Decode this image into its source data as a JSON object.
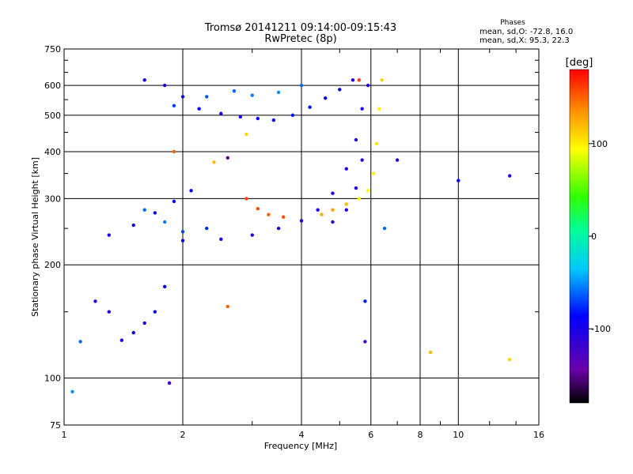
{
  "chart_data": {
    "type": "scatter",
    "title": "Tromsø 20141211 09:14:00-09:15:43",
    "subtitle": "RwPretec (8p)",
    "xlabel": "Frequency [MHz]",
    "ylabel": "Stationary phase Virtual Height [km]",
    "x_scale": "log",
    "y_scale": "log",
    "xlim": [
      1,
      16
    ],
    "ylim": [
      75,
      750
    ],
    "x_ticks": [
      1,
      2,
      4,
      6,
      8,
      10,
      16
    ],
    "y_ticks": [
      75,
      100,
      200,
      300,
      400,
      500,
      600,
      750
    ],
    "grid": true,
    "stats": {
      "header": "Phases",
      "line1": "mean, sd,O: -72.8, 16.0",
      "line2": "mean, sd,X:  95.3, 22.3"
    },
    "colorbar": {
      "label": "[deg]",
      "range": [
        -180,
        180
      ],
      "ticks": [
        100,
        0,
        -100
      ]
    },
    "series": [
      {
        "points": [
          [
            1.6,
            620,
            -95
          ],
          [
            1.8,
            600,
            -100
          ],
          [
            2.0,
            560,
            -95
          ],
          [
            2.2,
            520,
            -90
          ],
          [
            2.5,
            505,
            -100
          ],
          [
            2.8,
            495,
            -95
          ],
          [
            3.1,
            490,
            -90
          ],
          [
            3.4,
            485,
            -85
          ],
          [
            3.8,
            500,
            -80
          ],
          [
            4.2,
            525,
            -85
          ],
          [
            4.6,
            555,
            -90
          ],
          [
            5.0,
            585,
            -95
          ],
          [
            5.4,
            620,
            -100
          ],
          [
            1.9,
            530,
            -70
          ],
          [
            2.3,
            560,
            -65
          ],
          [
            2.7,
            580,
            -60
          ],
          [
            3.0,
            565,
            -55
          ],
          [
            3.5,
            575,
            -50
          ],
          [
            4.0,
            600,
            -60
          ],
          [
            1.3,
            240,
            -100
          ],
          [
            1.5,
            255,
            -95
          ],
          [
            1.7,
            275,
            -90
          ],
          [
            1.9,
            295,
            -85
          ],
          [
            2.1,
            315,
            -95
          ],
          [
            1.6,
            280,
            -60
          ],
          [
            1.8,
            260,
            -55
          ],
          [
            2.0,
            245,
            -70
          ],
          [
            2.3,
            250,
            -75
          ],
          [
            2.0,
            232,
            -90
          ],
          [
            2.5,
            234,
            -100
          ],
          [
            3.0,
            240,
            -105
          ],
          [
            3.5,
            250,
            -105
          ],
          [
            4.0,
            262,
            -100
          ],
          [
            4.4,
            280,
            -105
          ],
          [
            4.8,
            310,
            -100
          ],
          [
            5.2,
            360,
            -105
          ],
          [
            5.5,
            430,
            -105
          ],
          [
            5.7,
            520,
            -100
          ],
          [
            5.9,
            600,
            -110
          ],
          [
            4.8,
            260,
            -110
          ],
          [
            5.2,
            280,
            -110
          ],
          [
            5.5,
            320,
            -105
          ],
          [
            5.7,
            380,
            -110
          ],
          [
            1.4,
            126,
            -100
          ],
          [
            1.5,
            132,
            -95
          ],
          [
            1.6,
            140,
            -100
          ],
          [
            1.7,
            150,
            -95
          ],
          [
            1.8,
            175,
            -85
          ],
          [
            1.2,
            160,
            -110
          ],
          [
            1.3,
            150,
            -105
          ],
          [
            1.1,
            125,
            -60
          ],
          [
            1.05,
            92,
            -50
          ],
          [
            1.85,
            97,
            -120
          ],
          [
            2.9,
            300,
            160
          ],
          [
            3.1,
            282,
            155
          ],
          [
            3.3,
            272,
            150
          ],
          [
            3.6,
            268,
            155
          ],
          [
            4.5,
            272,
            125
          ],
          [
            4.8,
            280,
            130
          ],
          [
            5.2,
            290,
            120
          ],
          [
            5.6,
            300,
            100
          ],
          [
            5.9,
            315,
            95
          ],
          [
            6.1,
            350,
            100
          ],
          [
            6.2,
            420,
            105
          ],
          [
            6.3,
            520,
            100
          ],
          [
            6.4,
            620,
            110
          ],
          [
            5.6,
            620,
            160
          ],
          [
            2.6,
            155,
            150
          ],
          [
            8.5,
            117,
            120
          ],
          [
            13.5,
            112,
            110
          ],
          [
            10.0,
            335,
            -90
          ],
          [
            13.5,
            345,
            -110
          ],
          [
            7.0,
            380,
            -110
          ],
          [
            6.5,
            250,
            -60
          ],
          [
            5.8,
            160,
            -80
          ],
          [
            5.8,
            125,
            -120
          ],
          [
            2.6,
            385,
            -150
          ],
          [
            2.4,
            375,
            120
          ],
          [
            2.9,
            445,
            110
          ],
          [
            1.9,
            400,
            150
          ]
        ]
      }
    ]
  }
}
